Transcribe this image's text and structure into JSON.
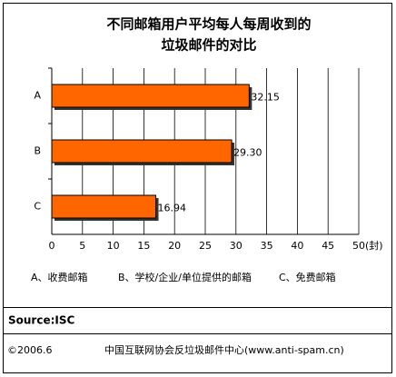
{
  "chart_data": {
    "type": "hbar",
    "title": [
      "不同邮箱用户平均每人每周收到的",
      "垃圾邮件的对比"
    ],
    "categories": [
      "A",
      "B",
      "C"
    ],
    "values": [
      32.15,
      29.3,
      16.94
    ],
    "value_labels": [
      "32.15",
      "29.30",
      "16.94"
    ],
    "color": "#ff6600",
    "xlim": [
      0,
      50
    ],
    "xticks": [
      0,
      5,
      10,
      15,
      20,
      25,
      30,
      35,
      40,
      45,
      50
    ],
    "xlabel": "(封)",
    "grid": true,
    "notes": [
      "A、收费邮箱",
      "B、学校/企业/单位提供的邮箱",
      "C、免费邮箱"
    ],
    "source": "Source:ISC",
    "date": "©2006.6",
    "publisher": "中国互联网协会反垃圾邮件中心(www.anti-spam.cn)"
  }
}
